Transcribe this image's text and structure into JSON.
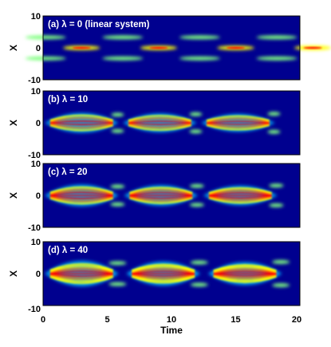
{
  "chart_data": {
    "type": "heatmap",
    "xlabel": "Time",
    "ylabel": "X",
    "xlim": [
      0,
      20
    ],
    "ylim": [
      -10,
      10
    ],
    "x_ticks": [
      "0",
      "5",
      "10",
      "15",
      "20"
    ],
    "y_ticks": [
      "10",
      "0",
      "-10"
    ],
    "colormap": [
      "#00008f",
      "#0000ff",
      "#00bfff",
      "#7fff7f",
      "#ffff00",
      "#ff7f00",
      "#ff0000"
    ],
    "panels": [
      {
        "label": "(a) λ = 0 (linear system)",
        "lambda": 0
      },
      {
        "label": "(b) λ = 10",
        "lambda": 10
      },
      {
        "label": "(c) λ = 20",
        "lambda": 20
      },
      {
        "label": "(d) λ = 40",
        "lambda": 40
      }
    ]
  }
}
